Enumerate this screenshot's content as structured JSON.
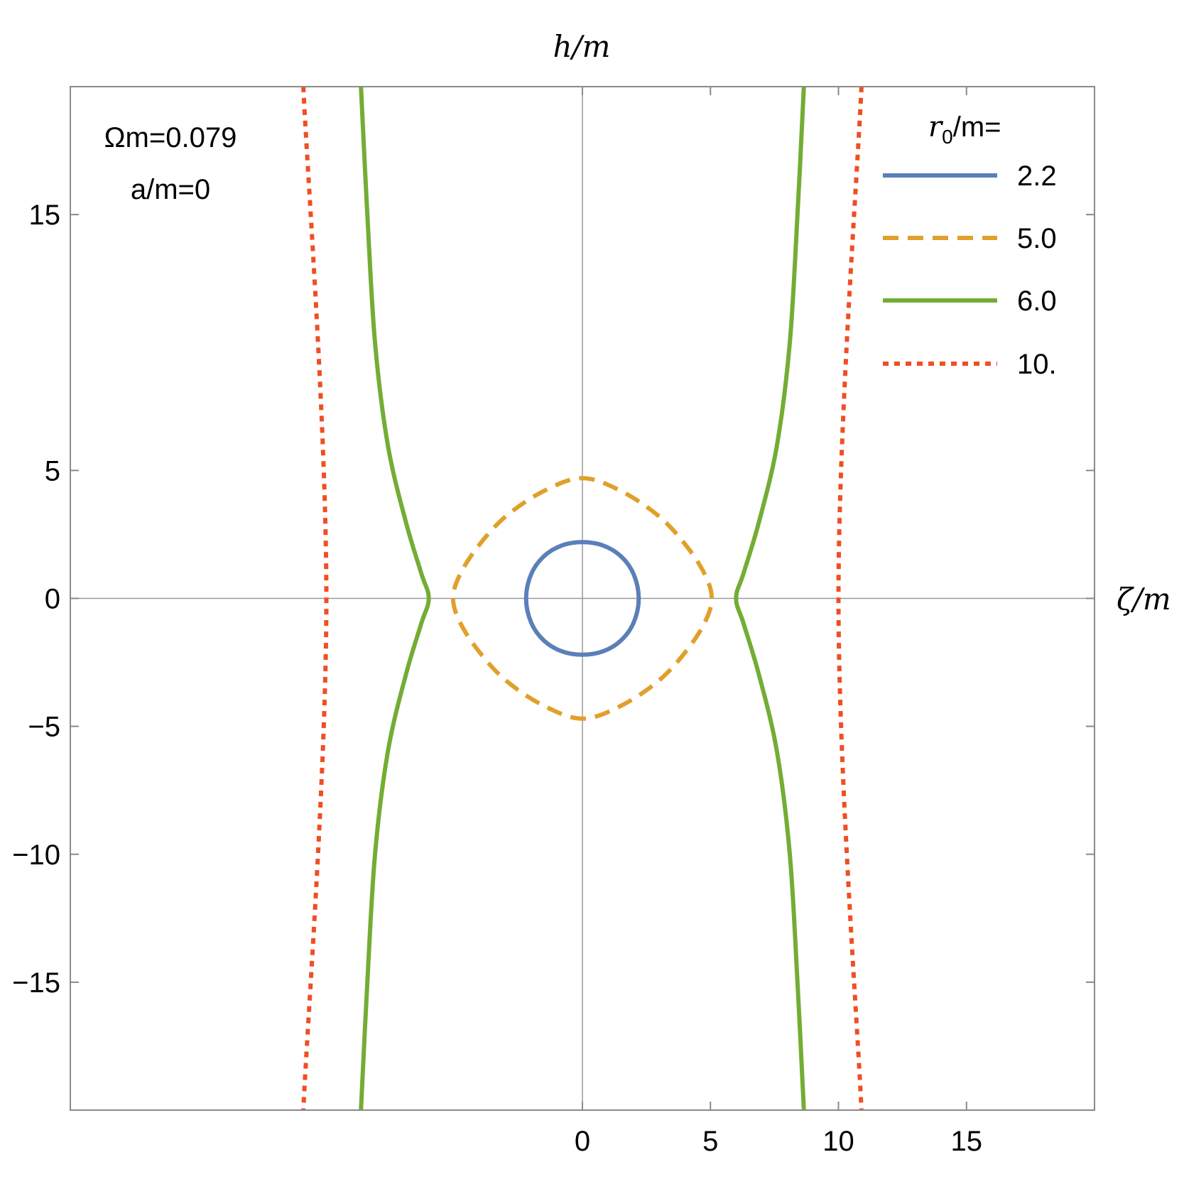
{
  "chart_data": {
    "type": "line",
    "xlabel": "ζ/m",
    "ylabel": "h/m",
    "xlim": [
      -20,
      20
    ],
    "ylim": [
      -20,
      20
    ],
    "x_ticks": [
      0,
      5,
      10,
      15
    ],
    "x_tick_labels": [
      "0",
      "5",
      "10",
      "15"
    ],
    "y_ticks": [
      15,
      5,
      0,
      -5,
      -10,
      -15
    ],
    "y_tick_labels": [
      "15",
      "5",
      "0",
      "−5",
      "−10",
      "−15"
    ],
    "grid": false,
    "legend_position": "top-right",
    "legend_title_main": "r",
    "legend_title_sub": "0",
    "legend_title_rest": "/m=",
    "annotations": [
      "Ωm=0.079",
      "a/m=0"
    ],
    "series": [
      {
        "name": "2.2",
        "color": "#5b7fb8",
        "dash": "solid",
        "shape": "closed",
        "points": [
          [
            2.2,
            0
          ],
          [
            2.0,
            0.95
          ],
          [
            1.5,
            1.65
          ],
          [
            0.8,
            2.07
          ],
          [
            0,
            2.2
          ],
          [
            -0.8,
            2.07
          ],
          [
            -1.5,
            1.65
          ],
          [
            -2.0,
            0.95
          ],
          [
            -2.2,
            0
          ],
          [
            -2.0,
            -0.95
          ],
          [
            -1.5,
            -1.65
          ],
          [
            -0.8,
            -2.07
          ],
          [
            0,
            -2.2
          ],
          [
            0.8,
            -2.07
          ],
          [
            1.5,
            -1.65
          ],
          [
            2.0,
            -0.95
          ],
          [
            2.2,
            0
          ]
        ]
      },
      {
        "name": "5.0",
        "color": "#e0a02a",
        "dash": "dashed",
        "shape": "closed",
        "points": [
          [
            5.05,
            0
          ],
          [
            4.8,
            0.9
          ],
          [
            4.1,
            2.0
          ],
          [
            3.0,
            3.2
          ],
          [
            1.5,
            4.2
          ],
          [
            0,
            4.7
          ],
          [
            -1.5,
            4.2
          ],
          [
            -3.0,
            3.2
          ],
          [
            -4.1,
            2.0
          ],
          [
            -4.8,
            0.9
          ],
          [
            -5.05,
            0
          ],
          [
            -4.8,
            -0.9
          ],
          [
            -4.1,
            -2.0
          ],
          [
            -3.0,
            -3.2
          ],
          [
            -1.5,
            -4.2
          ],
          [
            0,
            -4.7
          ],
          [
            1.5,
            -4.2
          ],
          [
            3.0,
            -3.2
          ],
          [
            4.1,
            -2.0
          ],
          [
            4.8,
            -0.9
          ],
          [
            5.05,
            0
          ]
        ]
      },
      {
        "name": "6.0",
        "color": "#73ad34",
        "dash": "solid",
        "shape": "branches",
        "branches": [
          [
            [
              -8.65,
              20
            ],
            [
              -8.4,
              15
            ],
            [
              -8.1,
              10
            ],
            [
              -7.6,
              6
            ],
            [
              -6.9,
              3
            ],
            [
              -6.3,
              1
            ],
            [
              -6.0,
              0
            ],
            [
              -6.3,
              -1
            ],
            [
              -6.9,
              -3
            ],
            [
              -7.6,
              -6
            ],
            [
              -8.1,
              -10
            ],
            [
              -8.4,
              -15
            ],
            [
              -8.65,
              -20
            ]
          ],
          [
            [
              8.65,
              20
            ],
            [
              8.4,
              15
            ],
            [
              8.1,
              10
            ],
            [
              7.6,
              6
            ],
            [
              6.9,
              3
            ],
            [
              6.3,
              1
            ],
            [
              6.0,
              0
            ],
            [
              6.3,
              -1
            ],
            [
              6.9,
              -3
            ],
            [
              7.6,
              -6
            ],
            [
              8.1,
              -10
            ],
            [
              8.4,
              -15
            ],
            [
              8.65,
              -20
            ]
          ]
        ]
      },
      {
        "name": "10.",
        "color": "#f04e23",
        "dash": "dotted",
        "shape": "branches",
        "branches": [
          [
            [
              -10.9,
              20
            ],
            [
              -10.0,
              0
            ],
            [
              -10.9,
              -20
            ]
          ],
          [
            [
              10.9,
              20
            ],
            [
              10.0,
              0
            ],
            [
              10.9,
              -20
            ]
          ]
        ]
      }
    ]
  }
}
